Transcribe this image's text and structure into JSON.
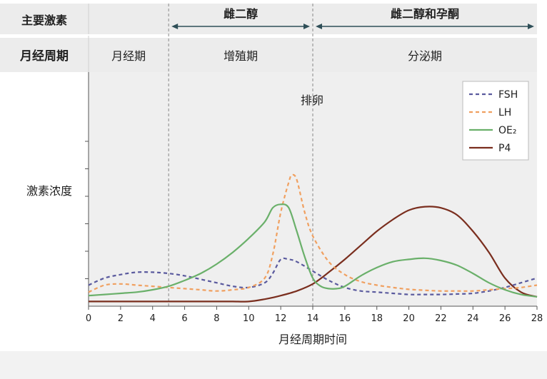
{
  "header": {
    "row1_label": "主要激素",
    "row2_label": "月经周期",
    "hormone_phases": [
      {
        "label": "雌二醇",
        "start": 5,
        "end": 14
      },
      {
        "label": "雌二醇和孕酮",
        "start": 14,
        "end": 28
      }
    ],
    "cycle_phases": [
      {
        "label": "月经期",
        "start": 0,
        "end": 5
      },
      {
        "label": "增殖期",
        "start": 5,
        "end": 14
      },
      {
        "label": "分泌期",
        "start": 14,
        "end": 28
      }
    ]
  },
  "colors": {
    "header_band": "#ececec",
    "plot_bg": "#efefef",
    "fsh": "#5a5a9e",
    "lh": "#f0a060",
    "oe2": "#6ab06a",
    "p4": "#7a2e1e",
    "arrow": "#2f4f58"
  },
  "chart_data": {
    "type": "line",
    "title": "",
    "xlabel": "月经周期时间",
    "ylabel": "激素浓度",
    "xlim": [
      0,
      28
    ],
    "ylim": [
      0,
      10
    ],
    "xticks": [
      0,
      2,
      4,
      6,
      8,
      10,
      12,
      14,
      16,
      18,
      20,
      22,
      24,
      26,
      28
    ],
    "yticks_count": 6,
    "annotation": "排卵",
    "vlines": [
      5,
      14
    ],
    "legend_position": "top-right",
    "series": [
      {
        "name": "FSH",
        "style": "dashed",
        "color": "#5a5a9e",
        "x": [
          0,
          1,
          2,
          3,
          4,
          5,
          6,
          7,
          8,
          9,
          10,
          11,
          11.5,
          12,
          12.5,
          13,
          14,
          15,
          16,
          17,
          18,
          19,
          20,
          21,
          22,
          23,
          24,
          25,
          26,
          27,
          28
        ],
        "y": [
          0.9,
          1.2,
          1.35,
          1.45,
          1.45,
          1.4,
          1.3,
          1.15,
          1.0,
          0.85,
          0.8,
          1.0,
          1.4,
          2.0,
          2.0,
          1.9,
          1.5,
          1.1,
          0.8,
          0.65,
          0.6,
          0.55,
          0.5,
          0.5,
          0.5,
          0.52,
          0.55,
          0.65,
          0.8,
          1.0,
          1.2
        ]
      },
      {
        "name": "LH",
        "style": "dashed",
        "color": "#f0a060",
        "x": [
          0,
          1,
          2,
          3,
          4,
          5,
          6,
          7,
          8,
          9,
          10,
          11,
          11.5,
          12,
          12.5,
          12.7,
          13,
          13.5,
          14,
          15,
          16,
          17,
          18,
          19,
          20,
          21,
          22,
          23,
          24,
          25,
          26,
          27,
          28
        ],
        "y": [
          0.6,
          0.9,
          0.95,
          0.9,
          0.85,
          0.8,
          0.75,
          0.7,
          0.65,
          0.7,
          0.8,
          1.2,
          2.2,
          4.0,
          5.3,
          5.6,
          5.4,
          4.0,
          3.0,
          1.9,
          1.35,
          1.05,
          0.9,
          0.8,
          0.72,
          0.68,
          0.65,
          0.65,
          0.65,
          0.7,
          0.75,
          0.8,
          0.9
        ]
      },
      {
        "name": "OE₂",
        "style": "solid",
        "color": "#6ab06a",
        "x": [
          0,
          1,
          2,
          3,
          4,
          5,
          6,
          7,
          8,
          9,
          10,
          11,
          11.5,
          12,
          12.5,
          13,
          13.5,
          14,
          14.5,
          15,
          15.5,
          16,
          17,
          18,
          19,
          20,
          21,
          22,
          23,
          24,
          25,
          26,
          27,
          28
        ],
        "y": [
          0.45,
          0.5,
          0.55,
          0.6,
          0.7,
          0.85,
          1.1,
          1.4,
          1.8,
          2.3,
          2.9,
          3.6,
          4.2,
          4.35,
          4.2,
          3.2,
          2.1,
          1.2,
          0.85,
          0.75,
          0.75,
          0.85,
          1.3,
          1.65,
          1.9,
          2.0,
          2.05,
          1.95,
          1.75,
          1.4,
          1.0,
          0.7,
          0.5,
          0.4
        ]
      },
      {
        "name": "P4",
        "style": "solid",
        "color": "#7a2e1e",
        "x": [
          0,
          1,
          2,
          3,
          4,
          5,
          6,
          7,
          8,
          9,
          10,
          11,
          12,
          13,
          14,
          15,
          16,
          17,
          18,
          19,
          20,
          21,
          22,
          23,
          24,
          25,
          26,
          27,
          28
        ],
        "y": [
          0.2,
          0.2,
          0.2,
          0.2,
          0.2,
          0.2,
          0.2,
          0.2,
          0.2,
          0.2,
          0.2,
          0.3,
          0.45,
          0.65,
          0.95,
          1.45,
          2.0,
          2.6,
          3.2,
          3.7,
          4.1,
          4.25,
          4.2,
          3.9,
          3.2,
          2.3,
          1.2,
          0.6,
          0.4
        ]
      }
    ]
  }
}
